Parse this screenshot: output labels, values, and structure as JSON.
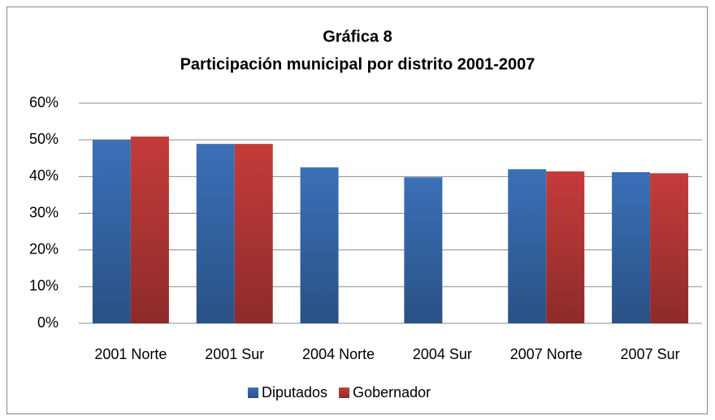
{
  "chart_data": {
    "type": "bar",
    "title": "Gráfica 8",
    "subtitle": "Participación municipal por distrito 2001-2007",
    "categories": [
      "2001 Norte",
      "2001 Sur",
      "2004 Norte",
      "2004 Sur",
      "2007 Norte",
      "2007 Sur"
    ],
    "series": [
      {
        "name": "Diputados",
        "color": "#3a70b8",
        "values": [
          50.0,
          48.9,
          42.5,
          39.8,
          42.0,
          41.2
        ]
      },
      {
        "name": "Gobernador",
        "color": "#c43c3a",
        "values": [
          50.9,
          48.9,
          null,
          null,
          41.4,
          40.9
        ]
      }
    ],
    "ylim": [
      0,
      60
    ],
    "yticks": [
      {
        "value": 0,
        "label": "0%"
      },
      {
        "value": 10,
        "label": "10%"
      },
      {
        "value": 20,
        "label": "20%"
      },
      {
        "value": 30,
        "label": "30%"
      },
      {
        "value": 40,
        "label": "40%"
      },
      {
        "value": 50,
        "label": "50%"
      },
      {
        "value": 60,
        "label": "60%"
      }
    ],
    "grid": true,
    "legend": "bottom"
  }
}
